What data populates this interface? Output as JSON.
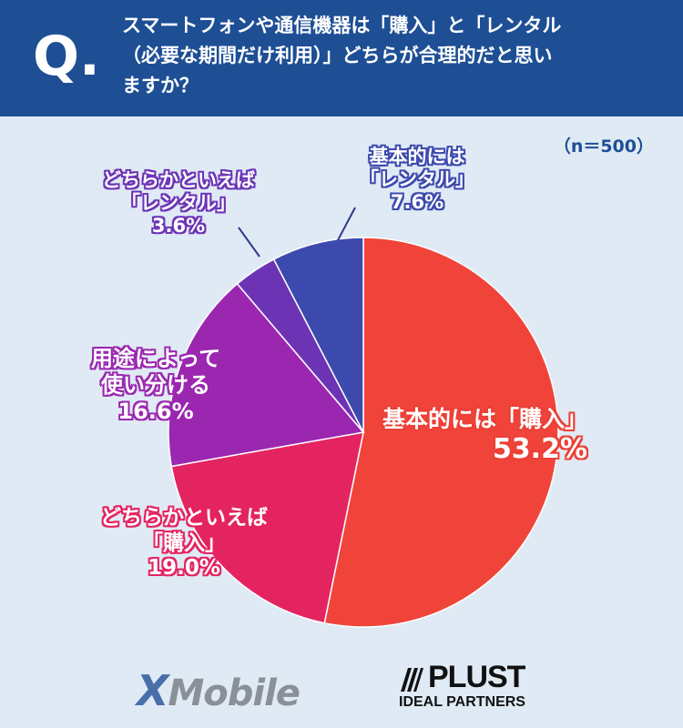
{
  "question": {
    "mark": "Q.",
    "lines": [
      "スマートフォンや通信機器は「購入」と「レンタル",
      "（必要な期間だけ利用）」どちらが合理的だと思い",
      "ますか？"
    ]
  },
  "sample_note": "（n＝500）",
  "chart_data": {
    "type": "pie",
    "start": "12 o'clock, clockwise",
    "slices": [
      {
        "label_lines": [
          "基本的には「購入」"
        ],
        "value": 53.2,
        "value_text": "53.2%",
        "color": "#f0443a",
        "text_color": "#ec3f36",
        "outline": true
      },
      {
        "label_lines": [
          "どちらかといえば",
          "「購入」"
        ],
        "value": 19.0,
        "value_text": "19.0%",
        "color": "#e42461",
        "text_color": "#e42461",
        "outline": true
      },
      {
        "label_lines": [
          "用途によって",
          "使い分ける"
        ],
        "value": 16.6,
        "value_text": "16.6%",
        "color": "#9b27b0",
        "text_color": "#9b27b0",
        "outline": true
      },
      {
        "label_lines": [
          "どちらかといえば",
          "「レンタル」"
        ],
        "value": 3.6,
        "value_text": "3.6%",
        "color": "#6c34b5",
        "text_color": "#6c34b5",
        "outline": true
      },
      {
        "label_lines": [
          "基本的には",
          "「レンタル」"
        ],
        "value": 7.6,
        "value_text": "7.6%",
        "color": "#3d4aad",
        "text_color": "#3d4aad",
        "outline": true
      }
    ]
  },
  "logos": {
    "xmobile": {
      "x": "X",
      "rest": "Mobile"
    },
    "plust": {
      "line1": "PLUST",
      "line2": "IDEAL PARTNERS"
    }
  }
}
